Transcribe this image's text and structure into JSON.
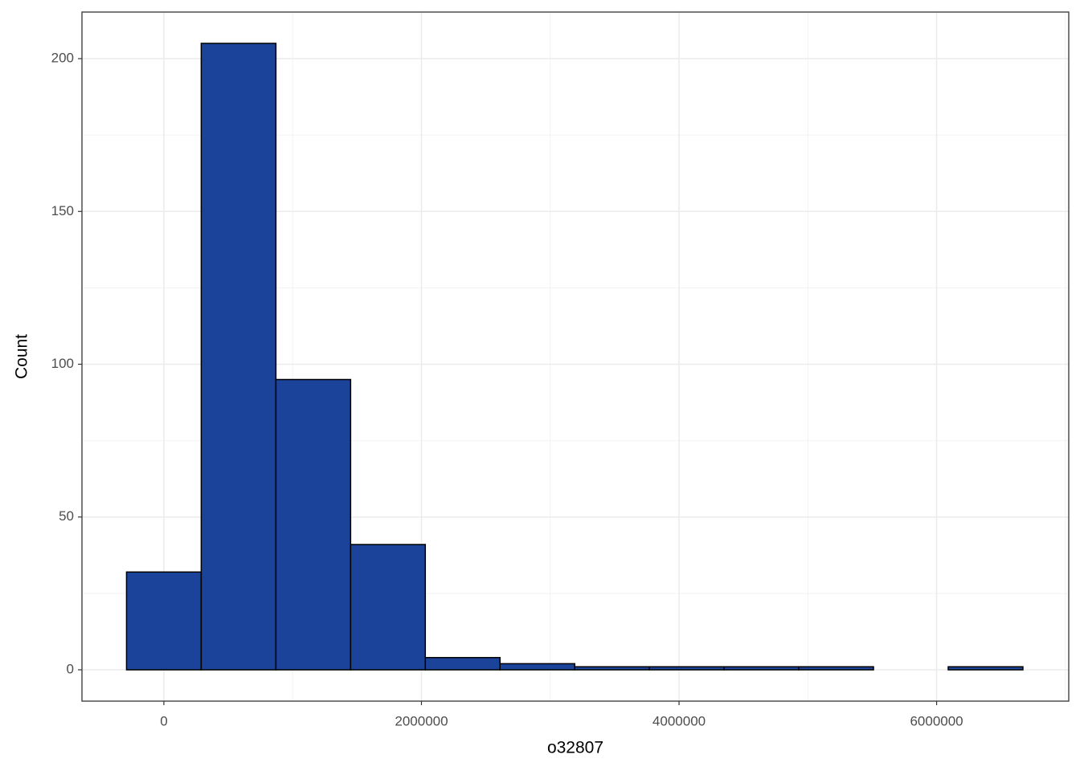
{
  "chart_data": {
    "type": "histogram",
    "x_label": "o32807",
    "y_label": "Count",
    "bins": [
      -290000,
      290000,
      870000,
      1450000,
      2030000,
      2610000,
      3190000,
      3770000,
      4350000,
      4930000,
      5510000,
      6090000,
      6670000
    ],
    "values": [
      32,
      205,
      95,
      41,
      4,
      2,
      1,
      1,
      1,
      1,
      0,
      1
    ],
    "color": "#1a4399",
    "edge_color": "#000000",
    "xlim": [
      -636000,
      7026000
    ],
    "xticks": [
      0,
      2000000,
      4000000,
      6000000
    ],
    "ylim": [
      -10.25,
      215.25
    ],
    "yticks": [
      0,
      50,
      100,
      150,
      200
    ],
    "xminor_ticks": [
      1000000,
      3000000,
      5000000,
      7000000
    ],
    "yminor_ticks": [
      25,
      75,
      125,
      175
    ],
    "grid": true
  }
}
